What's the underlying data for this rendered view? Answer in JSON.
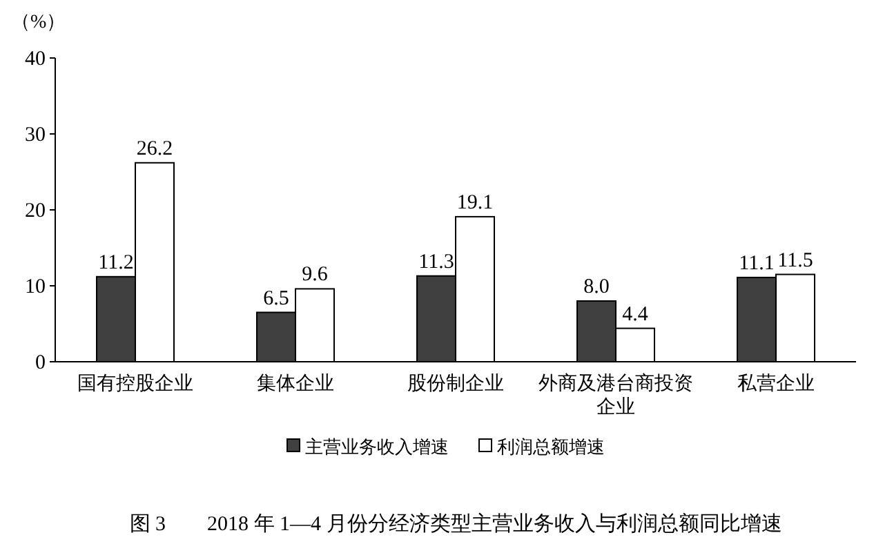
{
  "chart_data": {
    "type": "bar",
    "title": "图 3　　2018 年 1—4 月份分经济类型主营业务收入与利润总额同比增速",
    "ylabel": "（%）",
    "categories": [
      "国有控股企业",
      "集体企业",
      "股份制企业",
      "外商及港台商投资企业",
      "私营企业"
    ],
    "series": [
      {
        "name": "主营业务收入增速",
        "color": "#404040",
        "values": [
          11.2,
          6.5,
          11.3,
          8.0,
          11.1
        ],
        "value_labels": [
          "11.2",
          "6.5",
          "11.3",
          "8.0",
          "11.1"
        ]
      },
      {
        "name": "利润总额增速",
        "color": "#ffffff",
        "values": [
          26.2,
          9.6,
          19.1,
          4.4,
          11.5
        ],
        "value_labels": [
          "26.2",
          "9.6",
          "19.1",
          "4.4",
          "11.5"
        ]
      }
    ],
    "ylim": [
      0,
      40
    ],
    "yticks": [
      0,
      10,
      20,
      30,
      40
    ],
    "grid": false,
    "legend": "bottom"
  }
}
